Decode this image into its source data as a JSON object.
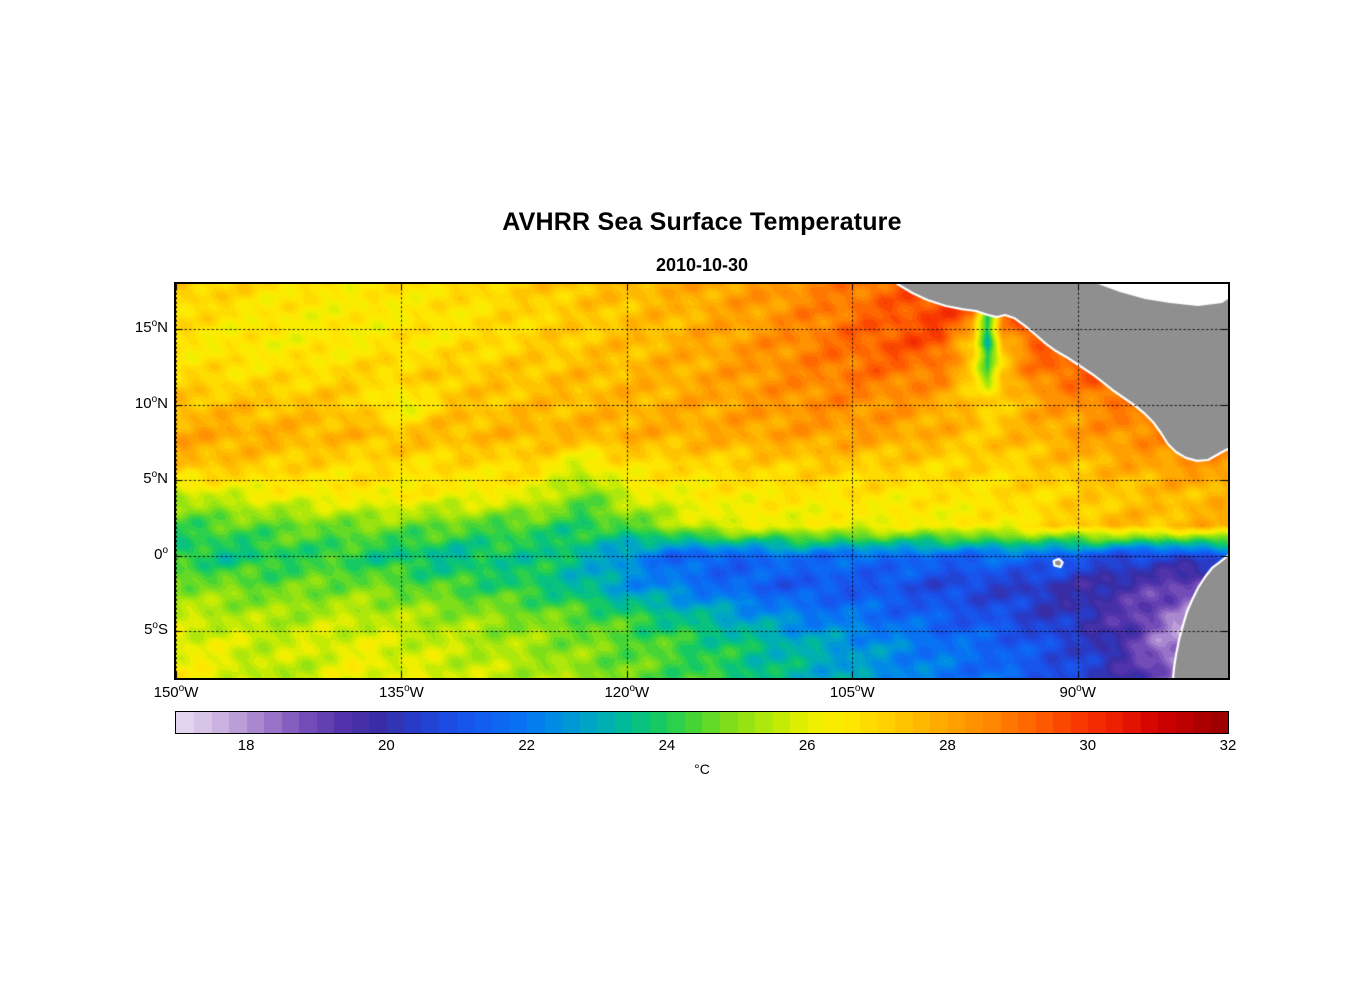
{
  "degree_glyph": "o",
  "chart_data": {
    "type": "heatmap",
    "title": "AVHRR Sea Surface Temperature",
    "subtitle": "2010-10-30",
    "x_axis": {
      "ticks": [
        {
          "num": "150",
          "hemi": "W",
          "lon": -150
        },
        {
          "num": "135",
          "hemi": "W",
          "lon": -135
        },
        {
          "num": "120",
          "hemi": "W",
          "lon": -120
        },
        {
          "num": "105",
          "hemi": "W",
          "lon": -105
        },
        {
          "num": "90",
          "hemi": "W",
          "lon": -90
        }
      ]
    },
    "y_axis": {
      "ticks": [
        {
          "num": "15",
          "hemi": "N",
          "lat": 15
        },
        {
          "num": "10",
          "hemi": "N",
          "lat": 10
        },
        {
          "num": "5",
          "hemi": "N",
          "lat": 5
        },
        {
          "num": "0",
          "hemi": "",
          "lat": 0
        },
        {
          "num": "5",
          "hemi": "S",
          "lat": -5
        }
      ]
    },
    "lon_range": [
      -150,
      -80
    ],
    "lat_range": [
      -8.1,
      18
    ],
    "grid": {
      "lons": [
        -150,
        -147,
        -144,
        -141,
        -138,
        -135,
        -132,
        -129,
        -126,
        -123,
        -120,
        -117,
        -114,
        -111,
        -108,
        -105,
        -102,
        -99,
        -97,
        -96,
        -95,
        -93,
        -90,
        -87,
        -84,
        -81,
        -80
      ],
      "lats": [
        18,
        16,
        14,
        12,
        10,
        8,
        6,
        4,
        2,
        0,
        -2,
        -4,
        -6,
        -8
      ],
      "sst_c": [
        [
          27.3,
          27.1,
          26.8,
          26.6,
          26.5,
          26.6,
          26.8,
          27.0,
          27.2,
          27.4,
          27.6,
          27.8,
          28.0,
          28.2,
          28.5,
          28.8,
          29.2,
          29.5,
          29.6,
          29.7,
          29.7,
          29.6,
          29.4,
          29.2,
          29.0,
          28.9,
          28.9
        ],
        [
          26.9,
          26.7,
          26.5,
          26.4,
          26.4,
          26.5,
          26.6,
          26.8,
          27.0,
          27.2,
          27.4,
          27.6,
          27.9,
          28.2,
          28.6,
          29.0,
          29.4,
          29.8,
          29.2,
          24.0,
          29.2,
          29.6,
          29.5,
          29.3,
          29.1,
          28.9,
          28.9
        ],
        [
          26.6,
          26.5,
          26.4,
          26.4,
          26.5,
          26.6,
          26.7,
          26.9,
          27.1,
          27.3,
          27.5,
          27.7,
          28.0,
          28.3,
          28.7,
          29.1,
          29.5,
          29.4,
          27.0,
          23.0,
          27.5,
          29.2,
          29.5,
          29.4,
          29.1,
          28.8,
          28.8
        ],
        [
          26.9,
          26.8,
          26.8,
          26.9,
          27.0,
          27.1,
          27.2,
          27.3,
          27.4,
          27.5,
          27.6,
          27.8,
          28.0,
          28.3,
          28.6,
          28.9,
          28.9,
          28.6,
          27.0,
          24.8,
          27.2,
          28.7,
          29.2,
          29.5,
          29.2,
          29.0,
          29.0
        ],
        [
          27.5,
          27.5,
          27.4,
          27.4,
          27.3,
          25.8,
          27.3,
          27.4,
          27.5,
          27.6,
          27.7,
          27.8,
          28.0,
          28.2,
          28.4,
          28.5,
          28.3,
          27.9,
          27.4,
          26.9,
          27.3,
          27.9,
          28.4,
          28.8,
          28.9,
          28.8,
          28.8
        ],
        [
          28.0,
          27.9,
          27.8,
          27.7,
          27.6,
          27.5,
          27.6,
          27.6,
          27.7,
          27.7,
          27.8,
          27.8,
          27.9,
          28.0,
          28.1,
          28.1,
          28.0,
          27.7,
          27.5,
          27.3,
          27.5,
          27.7,
          28.1,
          28.4,
          28.6,
          28.7,
          28.8
        ],
        [
          27.6,
          27.4,
          27.2,
          27.0,
          26.9,
          26.8,
          26.8,
          26.9,
          26.9,
          25.8,
          26.8,
          26.9,
          27.0,
          27.1,
          27.2,
          27.2,
          27.1,
          27.0,
          27.0,
          27.0,
          27.0,
          27.2,
          27.5,
          27.8,
          28.1,
          28.3,
          28.3
        ],
        [
          25.4,
          25.8,
          26.1,
          26.3,
          26.4,
          26.4,
          26.3,
          26.2,
          26.0,
          24.6,
          25.8,
          26.2,
          26.4,
          26.5,
          26.6,
          26.6,
          26.6,
          26.6,
          26.7,
          26.7,
          26.8,
          26.9,
          27.1,
          27.3,
          27.5,
          27.6,
          27.7
        ],
        [
          24.2,
          24.4,
          24.6,
          24.7,
          24.8,
          24.8,
          24.6,
          24.4,
          24.2,
          24.0,
          24.4,
          25.2,
          26.0,
          26.1,
          26.1,
          26.2,
          26.2,
          26.3,
          26.3,
          26.4,
          26.4,
          26.7,
          27.2,
          27.6,
          27.5,
          27.8,
          27.9
        ],
        [
          23.9,
          23.6,
          23.8,
          24.1,
          23.9,
          23.6,
          23.4,
          23.6,
          23.8,
          23.3,
          22.4,
          21.6,
          21.3,
          21.6,
          21.9,
          21.6,
          21.8,
          21.5,
          21.6,
          21.7,
          21.8,
          21.7,
          21.2,
          20.8,
          20.5,
          21.0,
          21.2
        ],
        [
          25.0,
          24.8,
          24.6,
          24.7,
          24.8,
          24.6,
          24.3,
          24.1,
          23.8,
          23.3,
          22.6,
          22.1,
          21.7,
          21.3,
          21.1,
          21.2,
          21.0,
          20.7,
          20.6,
          20.5,
          20.5,
          20.3,
          19.9,
          19.6,
          19.2,
          18.4,
          18.2
        ],
        [
          25.6,
          25.5,
          25.3,
          25.4,
          25.6,
          25.4,
          25.2,
          25.0,
          24.8,
          24.5,
          24.1,
          23.6,
          23.1,
          22.6,
          22.1,
          21.9,
          21.6,
          21.3,
          21.1,
          21.0,
          20.9,
          20.5,
          20.1,
          19.4,
          18.4,
          17.8,
          17.7
        ],
        [
          26.1,
          25.9,
          25.7,
          25.8,
          26.0,
          25.8,
          25.6,
          25.4,
          25.2,
          24.9,
          24.6,
          24.3,
          23.9,
          23.5,
          23.1,
          22.7,
          22.3,
          21.9,
          21.7,
          21.6,
          21.5,
          21.1,
          20.6,
          19.6,
          18.2,
          17.5,
          17.4
        ],
        [
          26.3,
          26.1,
          25.3,
          25.6,
          26.2,
          26.0,
          25.8,
          25.6,
          25.4,
          25.1,
          24.7,
          24.4,
          24.0,
          23.6,
          23.2,
          22.8,
          22.4,
          22.0,
          21.8,
          21.7,
          21.6,
          21.2,
          20.7,
          19.9,
          18.6,
          17.4,
          17.3
        ]
      ]
    },
    "colormap": {
      "band_step": 0.25,
      "stops": [
        [
          17,
          232,
          222,
          240
        ],
        [
          17.6,
          205,
          180,
          225
        ],
        [
          18.2,
          165,
          130,
          205
        ],
        [
          18.8,
          120,
          80,
          185
        ],
        [
          19.4,
          80,
          50,
          170
        ],
        [
          19.9,
          55,
          45,
          165
        ],
        [
          20.4,
          40,
          60,
          200
        ],
        [
          21,
          25,
          80,
          235
        ],
        [
          21.8,
          10,
          110,
          245
        ],
        [
          22.4,
          0,
          140,
          230
        ],
        [
          23,
          0,
          170,
          190
        ],
        [
          23.5,
          0,
          190,
          140
        ],
        [
          24,
          30,
          205,
          85
        ],
        [
          24.5,
          85,
          215,
          45
        ],
        [
          25,
          140,
          225,
          20
        ],
        [
          25.6,
          195,
          235,
          5
        ],
        [
          26,
          235,
          240,
          0
        ],
        [
          26.5,
          255,
          235,
          0
        ],
        [
          27,
          255,
          215,
          0
        ],
        [
          27.5,
          255,
          190,
          0
        ],
        [
          28,
          255,
          165,
          0
        ],
        [
          28.6,
          255,
          135,
          0
        ],
        [
          29.2,
          255,
          100,
          0
        ],
        [
          29.8,
          250,
          60,
          0
        ],
        [
          30.4,
          235,
          30,
          0
        ],
        [
          31,
          210,
          0,
          0
        ],
        [
          31.5,
          180,
          0,
          0
        ],
        [
          32,
          150,
          0,
          0
        ]
      ]
    },
    "colorbar": {
      "label": "°C",
      "ticks": [
        18,
        20,
        22,
        24,
        26,
        28,
        30,
        32
      ],
      "range": [
        17,
        32
      ]
    },
    "land": {
      "fill": "#8f8f8f",
      "coast": "#ffffff",
      "masses": [
        {
          "name": "central-america",
          "outline": [
            [
              -102,
              18
            ],
            [
              -101,
              17.4
            ],
            [
              -100,
              16.94
            ],
            [
              -98.77,
              16.54
            ],
            [
              -97.7,
              16.34
            ],
            [
              -96.77,
              16.21
            ],
            [
              -95.97,
              15.95
            ],
            [
              -95.37,
              15.81
            ],
            [
              -94.84,
              15.95
            ],
            [
              -94.24,
              15.75
            ],
            [
              -93.51,
              15.22
            ],
            [
              -92.78,
              14.62
            ],
            [
              -92.11,
              14.03
            ],
            [
              -91.45,
              13.56
            ],
            [
              -90.65,
              13.1
            ],
            [
              -89.85,
              12.57
            ],
            [
              -89.05,
              12.04
            ],
            [
              -88.25,
              11.44
            ],
            [
              -87.59,
              10.91
            ],
            [
              -86.92,
              10.45
            ],
            [
              -86.26,
              9.99
            ],
            [
              -85.52,
              9.39
            ],
            [
              -84.93,
              8.79
            ],
            [
              -84.46,
              8.13
            ],
            [
              -84,
              7.4
            ],
            [
              -83.46,
              6.87
            ],
            [
              -82.8,
              6.48
            ],
            [
              -82.07,
              6.28
            ],
            [
              -81.33,
              6.34
            ],
            [
              -80.74,
              6.67
            ],
            [
              -80.27,
              6.94
            ],
            [
              -80,
              7.07
            ],
            [
              -80,
              18
            ]
          ],
          "coast_end": 31
        },
        {
          "name": "south-america",
          "outline": [
            [
              -80,
              0
            ],
            [
              -80.53,
              -0.41
            ],
            [
              -81.06,
              -0.81
            ],
            [
              -81.53,
              -1.41
            ],
            [
              -82,
              -2.14
            ],
            [
              -82.39,
              -2.93
            ],
            [
              -82.73,
              -3.72
            ],
            [
              -82.99,
              -4.58
            ],
            [
              -83.26,
              -5.58
            ],
            [
              -83.46,
              -6.57
            ],
            [
              -83.59,
              -7.43
            ],
            [
              -83.66,
              -8.1
            ],
            [
              -80,
              -8.1
            ]
          ],
          "coast_end": 11
        },
        {
          "name": "galapagos-islands",
          "outline": [
            [
              -91.6,
              -0.35
            ],
            [
              -91.25,
              -0.2
            ],
            [
              -91.0,
              -0.45
            ],
            [
              -91.15,
              -0.75
            ],
            [
              -91.55,
              -0.65
            ]
          ],
          "coast_end": -1
        }
      ],
      "no_data_masses": [
        {
          "name": "caribbean-no-data",
          "outline": [
            [
              -88.65,
              18
            ],
            [
              -87.19,
              17.47
            ],
            [
              -85.52,
              17.01
            ],
            [
              -83.86,
              16.74
            ],
            [
              -81.99,
              16.54
            ],
            [
              -80.4,
              16.74
            ],
            [
              -80,
              17.01
            ],
            [
              -80,
              18
            ]
          ],
          "color": "#ffffff"
        }
      ]
    }
  }
}
